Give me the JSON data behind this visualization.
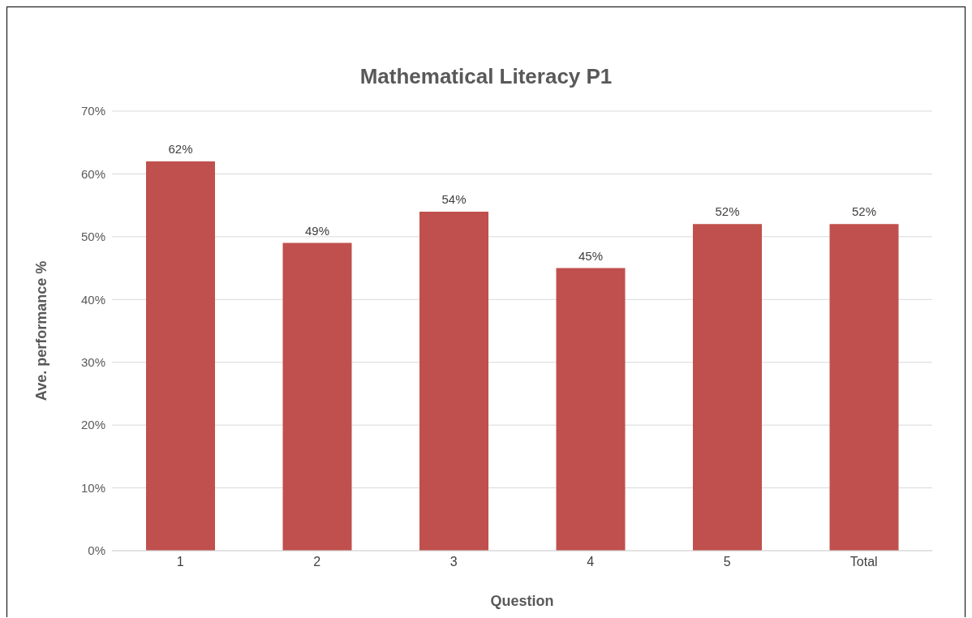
{
  "chart_data": {
    "type": "bar",
    "title": "Mathematical Literacy P1",
    "xlabel": "Question",
    "ylabel": "Ave. performance %",
    "categories": [
      "1",
      "2",
      "3",
      "4",
      "5",
      "Total"
    ],
    "values": [
      62,
      49,
      54,
      45,
      52,
      52
    ],
    "value_labels": [
      "62%",
      "49%",
      "54%",
      "45%",
      "52%",
      "52%"
    ],
    "color": "#c0504d",
    "ylim": [
      0,
      70
    ],
    "yticks": [
      {
        "value": 0,
        "label": "0%"
      },
      {
        "value": 10,
        "label": "10%"
      },
      {
        "value": 20,
        "label": "20%"
      },
      {
        "value": 30,
        "label": "30%"
      },
      {
        "value": 40,
        "label": "40%"
      },
      {
        "value": 50,
        "label": "50%"
      },
      {
        "value": 60,
        "label": "60%"
      },
      {
        "value": 70,
        "label": "70%"
      }
    ],
    "grid": "y"
  }
}
